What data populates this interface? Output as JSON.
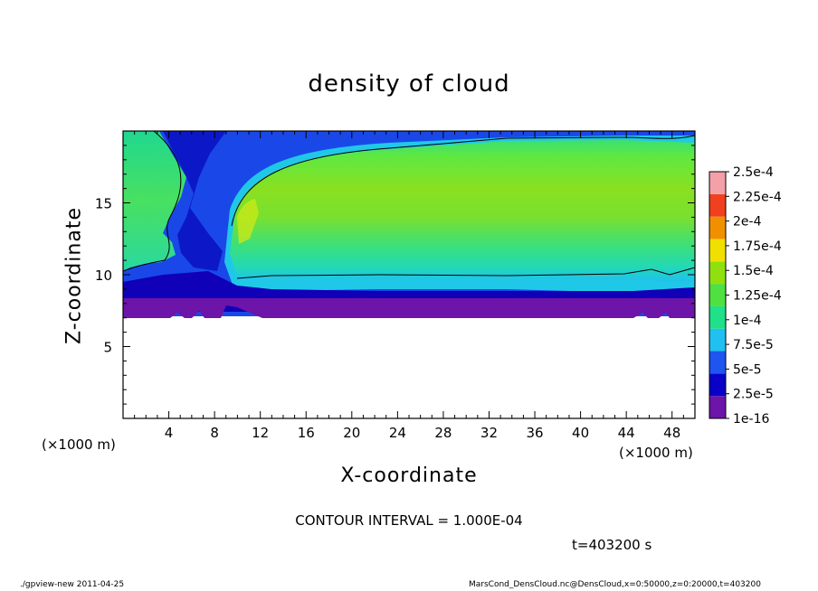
{
  "chart_data": {
    "type": "heatmap",
    "title": "density of cloud",
    "xlabel": "X-coordinate",
    "ylabel": "Z-coordinate",
    "x_unit": "(×1000 m)",
    "xlim": [
      0,
      50
    ],
    "ylim": [
      0,
      20
    ],
    "x_ticks": [
      4,
      8,
      12,
      16,
      20,
      24,
      28,
      32,
      36,
      40,
      44,
      48
    ],
    "y_ticks": [
      5,
      10,
      15
    ],
    "colorbar": {
      "labels": [
        "1e-16",
        "2.5e-5",
        "5e-5",
        "7.5e-5",
        "1e-4",
        "1.25e-4",
        "1.5e-4",
        "1.75e-4",
        "2e-4",
        "2.25e-4",
        "2.5e-4"
      ],
      "colors": [
        "#6c15a8",
        "#0a00c8",
        "#1e55f0",
        "#20c0f0",
        "#20e08a",
        "#50e040",
        "#90e010",
        "#f0e000",
        "#f09000",
        "#f04020",
        "#f4a0a8"
      ]
    },
    "contour_interval": "CONTOUR INTERVAL = 1.000E-04",
    "time": "t=403200 s",
    "footer_left": "./gpview-new   2011-04-25",
    "footer_right": "MarsCond_DensCloud.nc@DensCloud,x=0:50000,z=0:20000,t=403200"
  }
}
